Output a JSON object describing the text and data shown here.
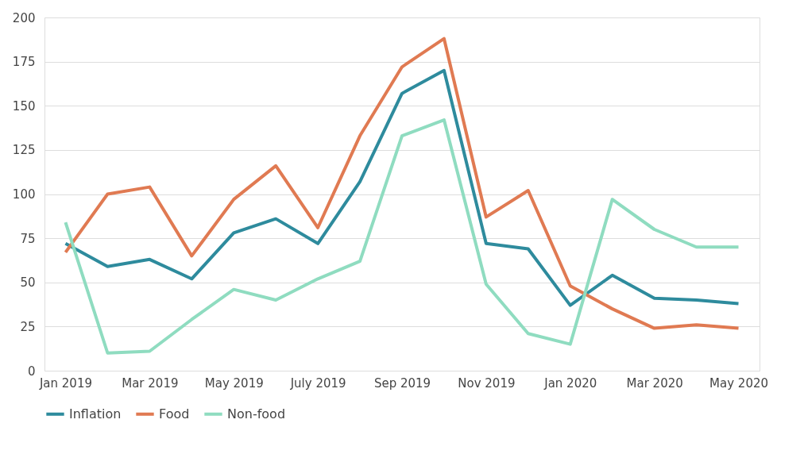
{
  "chart_data": {
    "type": "line",
    "categories": [
      "Jan 2019",
      null,
      "Mar 2019",
      null,
      "May 2019",
      null,
      "July 2019",
      null,
      "Sep 2019",
      null,
      "Nov 2019",
      null,
      "Jan 2020",
      null,
      "Mar 2020",
      null,
      "May 2020"
    ],
    "series": [
      {
        "name": "Inflation",
        "color": "#2e8b9d",
        "values": [
          72,
          59,
          63,
          52,
          78,
          86,
          72,
          107,
          157,
          170,
          72,
          69,
          37,
          54,
          41,
          40,
          38
        ]
      },
      {
        "name": "Food",
        "color": "#e07a52",
        "values": [
          67,
          100,
          104,
          65,
          97,
          116,
          81,
          133,
          172,
          188,
          87,
          102,
          48,
          35,
          24,
          26,
          24
        ]
      },
      {
        "name": "Non-food",
        "color": "#8fdcc0",
        "values": [
          84,
          10,
          11,
          29,
          46,
          40,
          52,
          62,
          133,
          142,
          49,
          21,
          15,
          97,
          80,
          70,
          70
        ]
      }
    ],
    "ylim": [
      0,
      200
    ],
    "yticks": [
      0,
      25,
      50,
      75,
      100,
      125,
      150,
      175,
      200
    ],
    "grid": "y",
    "legend": "bottom",
    "marker": "none",
    "line_style": "solid"
  }
}
